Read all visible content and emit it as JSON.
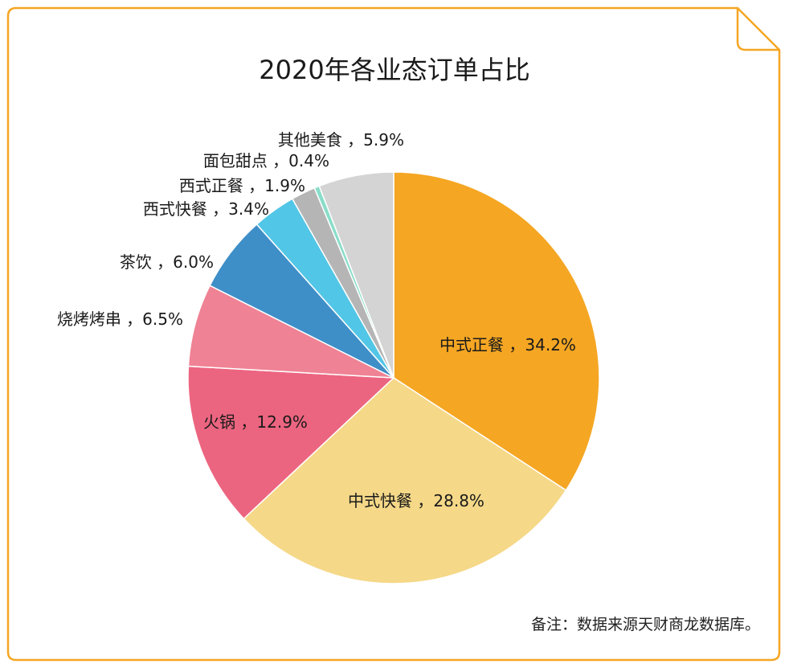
{
  "chart_data": {
    "type": "pie",
    "title": "2020年各业态订单占比",
    "slices": [
      {
        "label": "中式正餐",
        "value": 34.2,
        "color": "#F5A623",
        "display": "中式正餐 ，34.2%"
      },
      {
        "label": "中式快餐",
        "value": 28.8,
        "color": "#F5D888",
        "display": "中式快餐 ，28.8%"
      },
      {
        "label": "火锅",
        "value": 12.9,
        "color": "#EC6580",
        "display": "火锅 ，12.9%"
      },
      {
        "label": "烧烤烤串",
        "value": 6.5,
        "color": "#EF8294",
        "display": "烧烤烤串 ，6.5%"
      },
      {
        "label": "茶饮",
        "value": 6.0,
        "color": "#3E8FC8",
        "display": "茶饮 ，6.0%"
      },
      {
        "label": "西式快餐",
        "value": 3.4,
        "color": "#52C6E6",
        "display": "西式快餐 ，3.4%"
      },
      {
        "label": "西式正餐",
        "value": 1.9,
        "color": "#B5B5B5",
        "display": "西式正餐 ，1.9%"
      },
      {
        "label": "面包甜点",
        "value": 0.4,
        "color": "#8ADDC9",
        "display": "面包甜点 ，0.4%"
      },
      {
        "label": "其他美食",
        "value": 5.9,
        "color": "#D4D4D4",
        "display": "其他美食 ，5.9%"
      }
    ],
    "note": "备注：数据来源天财商龙数据库。"
  }
}
